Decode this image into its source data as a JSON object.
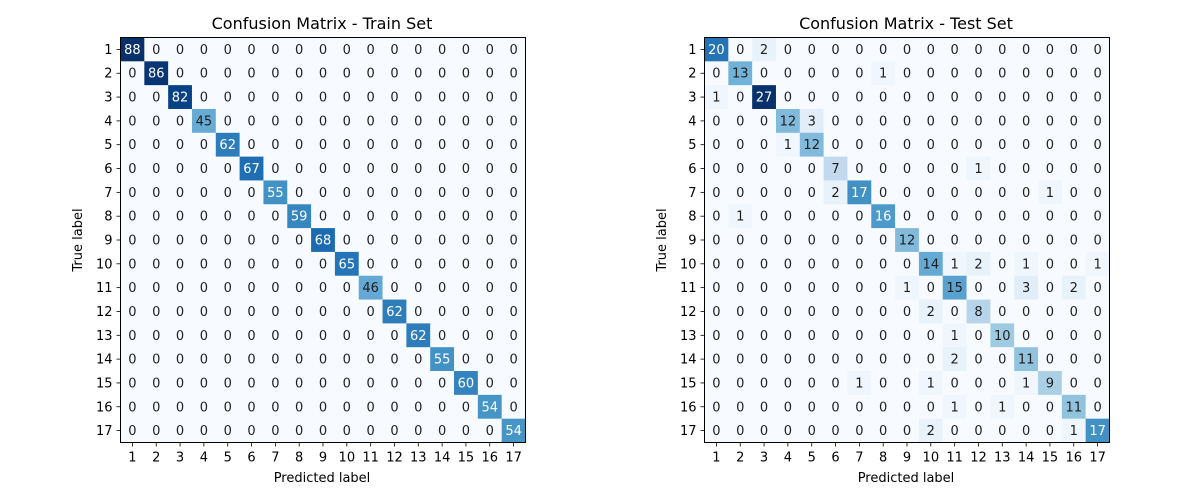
{
  "chart_data": [
    {
      "type": "heatmap",
      "title": "Confusion Matrix - Train Set",
      "xlabel": "Predicted label",
      "ylabel": "True label",
      "colormap": "Blues",
      "x_categories": [
        "1",
        "2",
        "3",
        "4",
        "5",
        "6",
        "7",
        "8",
        "9",
        "10",
        "11",
        "12",
        "13",
        "14",
        "15",
        "16",
        "17"
      ],
      "y_categories": [
        "1",
        "2",
        "3",
        "4",
        "5",
        "6",
        "7",
        "8",
        "9",
        "10",
        "11",
        "12",
        "13",
        "14",
        "15",
        "16",
        "17"
      ],
      "matrix": [
        [
          88,
          0,
          0,
          0,
          0,
          0,
          0,
          0,
          0,
          0,
          0,
          0,
          0,
          0,
          0,
          0,
          0
        ],
        [
          0,
          86,
          0,
          0,
          0,
          0,
          0,
          0,
          0,
          0,
          0,
          0,
          0,
          0,
          0,
          0,
          0
        ],
        [
          0,
          0,
          82,
          0,
          0,
          0,
          0,
          0,
          0,
          0,
          0,
          0,
          0,
          0,
          0,
          0,
          0
        ],
        [
          0,
          0,
          0,
          45,
          0,
          0,
          0,
          0,
          0,
          0,
          0,
          0,
          0,
          0,
          0,
          0,
          0
        ],
        [
          0,
          0,
          0,
          0,
          62,
          0,
          0,
          0,
          0,
          0,
          0,
          0,
          0,
          0,
          0,
          0,
          0
        ],
        [
          0,
          0,
          0,
          0,
          0,
          67,
          0,
          0,
          0,
          0,
          0,
          0,
          0,
          0,
          0,
          0,
          0
        ],
        [
          0,
          0,
          0,
          0,
          0,
          0,
          55,
          0,
          0,
          0,
          0,
          0,
          0,
          0,
          0,
          0,
          0
        ],
        [
          0,
          0,
          0,
          0,
          0,
          0,
          0,
          59,
          0,
          0,
          0,
          0,
          0,
          0,
          0,
          0,
          0
        ],
        [
          0,
          0,
          0,
          0,
          0,
          0,
          0,
          0,
          68,
          0,
          0,
          0,
          0,
          0,
          0,
          0,
          0
        ],
        [
          0,
          0,
          0,
          0,
          0,
          0,
          0,
          0,
          0,
          65,
          0,
          0,
          0,
          0,
          0,
          0,
          0
        ],
        [
          0,
          0,
          0,
          0,
          0,
          0,
          0,
          0,
          0,
          0,
          46,
          0,
          0,
          0,
          0,
          0,
          0
        ],
        [
          0,
          0,
          0,
          0,
          0,
          0,
          0,
          0,
          0,
          0,
          0,
          62,
          0,
          0,
          0,
          0,
          0
        ],
        [
          0,
          0,
          0,
          0,
          0,
          0,
          0,
          0,
          0,
          0,
          0,
          0,
          62,
          0,
          0,
          0,
          0
        ],
        [
          0,
          0,
          0,
          0,
          0,
          0,
          0,
          0,
          0,
          0,
          0,
          0,
          0,
          55,
          0,
          0,
          0
        ],
        [
          0,
          0,
          0,
          0,
          0,
          0,
          0,
          0,
          0,
          0,
          0,
          0,
          0,
          0,
          60,
          0,
          0
        ],
        [
          0,
          0,
          0,
          0,
          0,
          0,
          0,
          0,
          0,
          0,
          0,
          0,
          0,
          0,
          0,
          54,
          0
        ],
        [
          0,
          0,
          0,
          0,
          0,
          0,
          0,
          0,
          0,
          0,
          0,
          0,
          0,
          0,
          0,
          0,
          54
        ]
      ]
    },
    {
      "type": "heatmap",
      "title": "Confusion Matrix - Test Set",
      "xlabel": "Predicted label",
      "ylabel": "True label",
      "colormap": "Blues",
      "x_categories": [
        "1",
        "2",
        "3",
        "4",
        "5",
        "6",
        "7",
        "8",
        "9",
        "10",
        "11",
        "12",
        "13",
        "14",
        "15",
        "16",
        "17"
      ],
      "y_categories": [
        "1",
        "2",
        "3",
        "4",
        "5",
        "6",
        "7",
        "8",
        "9",
        "10",
        "11",
        "12",
        "13",
        "14",
        "15",
        "16",
        "17"
      ],
      "matrix": [
        [
          20,
          0,
          2,
          0,
          0,
          0,
          0,
          0,
          0,
          0,
          0,
          0,
          0,
          0,
          0,
          0,
          0
        ],
        [
          0,
          13,
          0,
          0,
          0,
          0,
          0,
          1,
          0,
          0,
          0,
          0,
          0,
          0,
          0,
          0,
          0
        ],
        [
          1,
          0,
          27,
          0,
          0,
          0,
          0,
          0,
          0,
          0,
          0,
          0,
          0,
          0,
          0,
          0,
          0
        ],
        [
          0,
          0,
          0,
          12,
          3,
          0,
          0,
          0,
          0,
          0,
          0,
          0,
          0,
          0,
          0,
          0,
          0
        ],
        [
          0,
          0,
          0,
          1,
          12,
          0,
          0,
          0,
          0,
          0,
          0,
          0,
          0,
          0,
          0,
          0,
          0
        ],
        [
          0,
          0,
          0,
          0,
          0,
          7,
          0,
          0,
          0,
          0,
          0,
          1,
          0,
          0,
          0,
          0,
          0
        ],
        [
          0,
          0,
          0,
          0,
          0,
          2,
          17,
          0,
          0,
          0,
          0,
          0,
          0,
          0,
          1,
          0,
          0
        ],
        [
          0,
          1,
          0,
          0,
          0,
          0,
          0,
          16,
          0,
          0,
          0,
          0,
          0,
          0,
          0,
          0,
          0
        ],
        [
          0,
          0,
          0,
          0,
          0,
          0,
          0,
          0,
          12,
          0,
          0,
          0,
          0,
          0,
          0,
          0,
          0
        ],
        [
          0,
          0,
          0,
          0,
          0,
          0,
          0,
          0,
          0,
          14,
          1,
          2,
          0,
          1,
          0,
          0,
          1
        ],
        [
          0,
          0,
          0,
          0,
          0,
          0,
          0,
          0,
          1,
          0,
          15,
          0,
          0,
          3,
          0,
          2,
          0
        ],
        [
          0,
          0,
          0,
          0,
          0,
          0,
          0,
          0,
          0,
          2,
          0,
          8,
          0,
          0,
          0,
          0,
          0
        ],
        [
          0,
          0,
          0,
          0,
          0,
          0,
          0,
          0,
          0,
          0,
          1,
          0,
          10,
          0,
          0,
          0,
          0
        ],
        [
          0,
          0,
          0,
          0,
          0,
          0,
          0,
          0,
          0,
          0,
          2,
          0,
          0,
          11,
          0,
          0,
          0
        ],
        [
          0,
          0,
          0,
          0,
          0,
          0,
          1,
          0,
          0,
          1,
          0,
          0,
          0,
          1,
          9,
          0,
          0
        ],
        [
          0,
          0,
          0,
          0,
          0,
          0,
          0,
          0,
          0,
          0,
          1,
          0,
          1,
          0,
          0,
          11,
          0
        ],
        [
          0,
          0,
          0,
          0,
          0,
          0,
          0,
          0,
          0,
          2,
          0,
          0,
          0,
          0,
          0,
          1,
          17
        ]
      ]
    }
  ]
}
